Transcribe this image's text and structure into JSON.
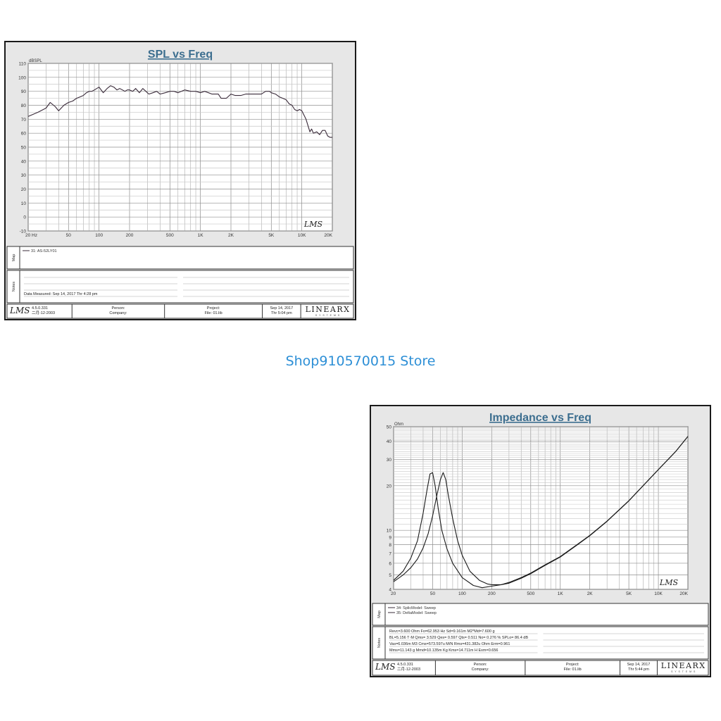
{
  "store_name": "Shop910570015 Store",
  "spl": {
    "chart_data": {
      "type": "line",
      "title": "SPL vs Freq",
      "ylabel": "dBSPL",
      "xlabel": "",
      "x_scale": "log",
      "xlim": [
        20,
        20000
      ],
      "ylim": [
        -10,
        110
      ],
      "grid": true,
      "x_ticks": [
        20,
        50,
        100,
        200,
        500,
        1000,
        2000,
        5000,
        10000,
        20000
      ],
      "x_tick_labels": [
        "20 Hz",
        "50",
        "100",
        "200",
        "500",
        "1K",
        "2K",
        "5K",
        "10K",
        "20K"
      ],
      "y_ticks": [
        -10,
        0,
        10,
        20,
        30,
        40,
        50,
        60,
        70,
        80,
        90,
        100,
        110
      ],
      "series": [
        {
          "name": "31: AS-52LY01",
          "color": "#3a2b3a",
          "x": [
            20,
            25,
            30,
            33,
            37,
            40,
            45,
            50,
            55,
            60,
            65,
            70,
            75,
            80,
            85,
            90,
            95,
            100,
            110,
            120,
            130,
            140,
            150,
            160,
            170,
            180,
            190,
            200,
            215,
            230,
            250,
            270,
            290,
            310,
            340,
            370,
            400,
            450,
            500,
            550,
            600,
            700,
            800,
            900,
            1000,
            1100,
            1200,
            1300,
            1400,
            1500,
            1600,
            1800,
            2000,
            2200,
            2500,
            2800,
            3000,
            3300,
            3600,
            4000,
            4400,
            4800,
            5000,
            5500,
            6000,
            6500,
            7000,
            7500,
            8000,
            8500,
            9000,
            9500,
            10000,
            11000,
            12000,
            12500,
            13000,
            14000,
            15000,
            16000,
            17000,
            18000,
            19000,
            20000
          ],
          "values": [
            72,
            75,
            78,
            82,
            79,
            76,
            80,
            82,
            83,
            85,
            86,
            87,
            89,
            90,
            90,
            91,
            92,
            93,
            89,
            92,
            94,
            93,
            91,
            92,
            91,
            90,
            91,
            91,
            90,
            92,
            89,
            92,
            90,
            88,
            89,
            90,
            88,
            89,
            90,
            90,
            89,
            91,
            90,
            90,
            89,
            90,
            89,
            88,
            88,
            88,
            85,
            85,
            88,
            87,
            87,
            88,
            88,
            88,
            88,
            88,
            90,
            90,
            89,
            88,
            86,
            85,
            84,
            81,
            80,
            77,
            76,
            77,
            76,
            70,
            61,
            63,
            60,
            61,
            59,
            62,
            62,
            58,
            57,
            57
          ]
        }
      ]
    },
    "y_unit": "dBSPL",
    "watermark": "LMS",
    "map_label": "Map",
    "notes_label": "Notes",
    "legend": [
      "31: AS-52LY01"
    ],
    "notes": [
      "Data Measured: Sep 14, 2017  Thr  4:28 pm"
    ],
    "footer": {
      "lms": "LMS",
      "version": "4.5.0.331",
      "date_cn": "二月-12-2003",
      "person": "Person:",
      "company": "Company:",
      "project": "Project:",
      "file": "File: 01.lib",
      "date": "Sep 14, 2017",
      "time": "Thr  5:04 pm",
      "brand": "LINEARX",
      "brand_sub": "S Y S T E M S"
    }
  },
  "impedance": {
    "chart_data": {
      "type": "line",
      "title": "Impedance vs Freq",
      "ylabel": "Ohm",
      "xlabel": "",
      "x_scale": "log",
      "y_scale": "log",
      "xlim": [
        20,
        20000
      ],
      "ylim": [
        4,
        50
      ],
      "grid": true,
      "x_ticks": [
        20,
        50,
        100,
        200,
        500,
        1000,
        2000,
        5000,
        10000,
        20000
      ],
      "x_tick_labels": [
        "20",
        "50",
        "100",
        "200",
        "500",
        "1K",
        "2K",
        "5K",
        "10K",
        "20K"
      ],
      "y_ticks": [
        4,
        5,
        6,
        7,
        8,
        9,
        10,
        20,
        30,
        40,
        50
      ],
      "series": [
        {
          "name": "34: SplicModel: Sweep",
          "color": "#1a1a1a",
          "x": [
            20,
            25,
            30,
            35,
            40,
            44,
            47,
            50,
            53,
            57,
            62,
            70,
            80,
            100,
            130,
            160,
            200,
            250,
            300,
            400,
            500,
            700,
            1000,
            1500,
            2000,
            3000,
            5000,
            7000,
            10000,
            15000,
            20000
          ],
          "values": [
            4.6,
            5.3,
            6.5,
            8.5,
            13.0,
            19.0,
            24.0,
            24.5,
            20.0,
            14.0,
            10.0,
            7.5,
            6.0,
            4.8,
            4.25,
            4.1,
            4.2,
            4.3,
            4.4,
            4.75,
            5.1,
            5.8,
            6.6,
            8.0,
            9.2,
            11.5,
            15.8,
            20.0,
            25.7,
            34.0,
            43.0
          ]
        },
        {
          "name": "35: DeltaModel: Sweep",
          "color": "#1a1a1a",
          "x": [
            20,
            25,
            30,
            35,
            40,
            45,
            50,
            55,
            60,
            64,
            68,
            72,
            80,
            90,
            100,
            120,
            150,
            180,
            200,
            250,
            300,
            400,
            500,
            700,
            1000,
            1500,
            2000,
            3000,
            5000,
            7000,
            10000,
            15000,
            20000
          ],
          "values": [
            4.5,
            5.0,
            5.6,
            6.4,
            7.6,
            9.5,
            12.5,
            17.0,
            22.0,
            24.5,
            22.0,
            17.5,
            12.0,
            8.5,
            6.8,
            5.3,
            4.6,
            4.35,
            4.3,
            4.3,
            4.45,
            4.8,
            5.15,
            5.85,
            6.65,
            8.05,
            9.25,
            11.55,
            15.85,
            20.05,
            25.7,
            34.0,
            43.0
          ]
        }
      ]
    },
    "y_unit": "Ohm",
    "watermark": "LMS",
    "map_label": "Map",
    "notes_label": "Notes",
    "legend": [
      "34: SplicModel: Sweep",
      "35: DeltaModel: Sweep"
    ],
    "notes": [
      "Revc=3.600 Ohm  Fo=62.953 Hz  Sd=9.161m M2*Md=7.600 g",
      "BL=5.156 T·M  Qms= 3.529  Qes= 0.597  Qts= 0.511  No= 0.276 %  SPLo= 86.4 dB",
      "Vas=6.036m M3 Cms=573.597u M/N  Rms=431.382u Ohm  Erm=0.961",
      "Mms=11.143 g  Mmd=10.135m Kg  Kms=14.711m H  Exm=0.656"
    ],
    "footer": {
      "lms": "LMS",
      "version": "4.5.0.331",
      "date_cn": "二月-12-2003",
      "person": "Person:",
      "company": "Company:",
      "project": "Project:",
      "file": "File: 01.lib",
      "date": "Sep 14, 2017",
      "time": "Thr  5:44 pm",
      "brand": "LINEARX",
      "brand_sub": "S Y S T E M S"
    }
  }
}
